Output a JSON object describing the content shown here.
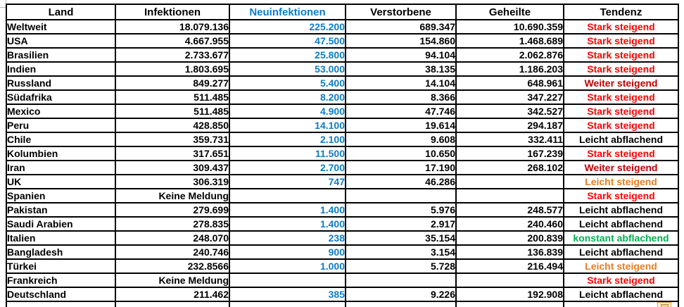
{
  "colors": {
    "border": "#000000",
    "text": "#000000",
    "new_infections_blue": "#0C7CC8",
    "trend_red": "#FF0000",
    "trend_dark_red": "#C00000",
    "trend_orange": "#E87D23",
    "trend_green": "#00B050",
    "autofill_border_orange": "#E8A33D"
  },
  "table": {
    "columns": [
      {
        "label": "Land",
        "color": "#000000"
      },
      {
        "label": "Infektionen",
        "color": "#000000"
      },
      {
        "label": "Neuinfektionen",
        "color": "#0C7CC8"
      },
      {
        "label": "Verstorbene",
        "color": "#000000"
      },
      {
        "label": "Geheilte",
        "color": "#000000"
      },
      {
        "label": "Tendenz",
        "color": "#000000"
      }
    ],
    "rows": [
      {
        "land": "Weltweit",
        "infektionen": "18.079.136",
        "neuinfektionen": "225.200",
        "verstorbene": "689.347",
        "geheilte": "10.690.359",
        "tendenz": "Stark steigend",
        "tendenz_color": "#FF0000"
      },
      {
        "land": "USA",
        "infektionen": "4.667.955",
        "neuinfektionen": "47.500",
        "verstorbene": "154.860",
        "geheilte": "1.468.689",
        "tendenz": "Stark steigend",
        "tendenz_color": "#FF0000"
      },
      {
        "land": "Brasilien",
        "infektionen": "2.733.677",
        "neuinfektionen": "25.800",
        "verstorbene": "94.104",
        "geheilte": "2.062.876",
        "tendenz": "Stark steigend",
        "tendenz_color": "#FF0000"
      },
      {
        "land": "Indien",
        "infektionen": "1.803.695",
        "neuinfektionen": "53.000",
        "verstorbene": "38.135",
        "geheilte": "1.186.203",
        "tendenz": "Stark steigend",
        "tendenz_color": "#FF0000"
      },
      {
        "land": "Russland",
        "infektionen": "849.277",
        "neuinfektionen": "5.400",
        "verstorbene": "14.104",
        "geheilte": "648.961",
        "tendenz": "Weiter steigend",
        "tendenz_color": "#C00000"
      },
      {
        "land": "Südafrika",
        "infektionen": "511.485",
        "neuinfektionen": "8.200",
        "verstorbene": "8.366",
        "geheilte": "347.227",
        "tendenz": "Stark steigend",
        "tendenz_color": "#FF0000"
      },
      {
        "land": "Mexico",
        "infektionen": "511.485",
        "neuinfektionen": "4.900",
        "verstorbene": "47.746",
        "geheilte": "342.527",
        "tendenz": "Stark steigend",
        "tendenz_color": "#FF0000"
      },
      {
        "land": "Peru",
        "infektionen": "428.850",
        "neuinfektionen": "14.100",
        "verstorbene": "19.614",
        "geheilte": "294.187",
        "tendenz": "Stark steigend",
        "tendenz_color": "#FF0000"
      },
      {
        "land": "Chile",
        "infektionen": "359.731",
        "neuinfektionen": "2.100",
        "verstorbene": "9.608",
        "geheilte": "332.411",
        "tendenz": "Leicht abflachend",
        "tendenz_color": "#000000"
      },
      {
        "land": "Kolumbien",
        "infektionen": "317.651",
        "neuinfektionen": "11.500",
        "verstorbene": "10.650",
        "geheilte": "167.239",
        "tendenz": "Stark steigend",
        "tendenz_color": "#FF0000"
      },
      {
        "land": "Iran",
        "infektionen": "309.437",
        "neuinfektionen": "2.700",
        "verstorbene": "17.190",
        "geheilte": "268.102",
        "tendenz": "Weiter steigend",
        "tendenz_color": "#C00000"
      },
      {
        "land": "UK",
        "infektionen": "306.319",
        "neuinfektionen": "747",
        "verstorbene": "46.286",
        "geheilte": "",
        "tendenz": "Leicht steigend",
        "tendenz_color": "#E87D23"
      },
      {
        "land": "Spanien",
        "infektionen": "Keine Meldung",
        "neuinfektionen": "",
        "verstorbene": "",
        "geheilte": "",
        "tendenz": "Stark steigend",
        "tendenz_color": "#FF0000"
      },
      {
        "land": "Pakistan",
        "infektionen": "279.699",
        "neuinfektionen": "1.400",
        "verstorbene": "5.976",
        "geheilte": "248.577",
        "tendenz": "Leicht abflachend",
        "tendenz_color": "#000000"
      },
      {
        "land": "Saudi Arabien",
        "infektionen": "278.835",
        "neuinfektionen": "1.400",
        "verstorbene": "2.917",
        "geheilte": "240.460",
        "tendenz": "Leicht abflachend",
        "tendenz_color": "#000000"
      },
      {
        "land": "Italien",
        "infektionen": "248.070",
        "neuinfektionen": "238",
        "verstorbene": "35.154",
        "geheilte": "200.839",
        "tendenz": "konstant abflachend",
        "tendenz_color": "#00B050"
      },
      {
        "land": "Bangladesh",
        "infektionen": "240.746",
        "neuinfektionen": "900",
        "verstorbene": "3.154",
        "geheilte": "136.839",
        "tendenz": "Leicht abflachend",
        "tendenz_color": "#000000",
        "misspelled": true
      },
      {
        "land": "Türkei",
        "infektionen": "232.8566",
        "neuinfektionen": "1.000",
        "verstorbene": "5.728",
        "geheilte": "216.494",
        "tendenz": "Leicht steigend",
        "tendenz_color": "#E87D23"
      },
      {
        "land": "Frankreich",
        "infektionen": "Keine Meldung",
        "neuinfektionen": "",
        "verstorbene": "",
        "geheilte": "",
        "tendenz": "Stark steigend",
        "tendenz_color": "#FF0000"
      },
      {
        "land": "Deutschland",
        "infektionen": "211.462",
        "neuinfektionen": "385",
        "verstorbene": "9.226",
        "geheilte": "192.908",
        "tendenz": "Leicht abflachend",
        "tendenz_color": "#000000"
      }
    ]
  }
}
